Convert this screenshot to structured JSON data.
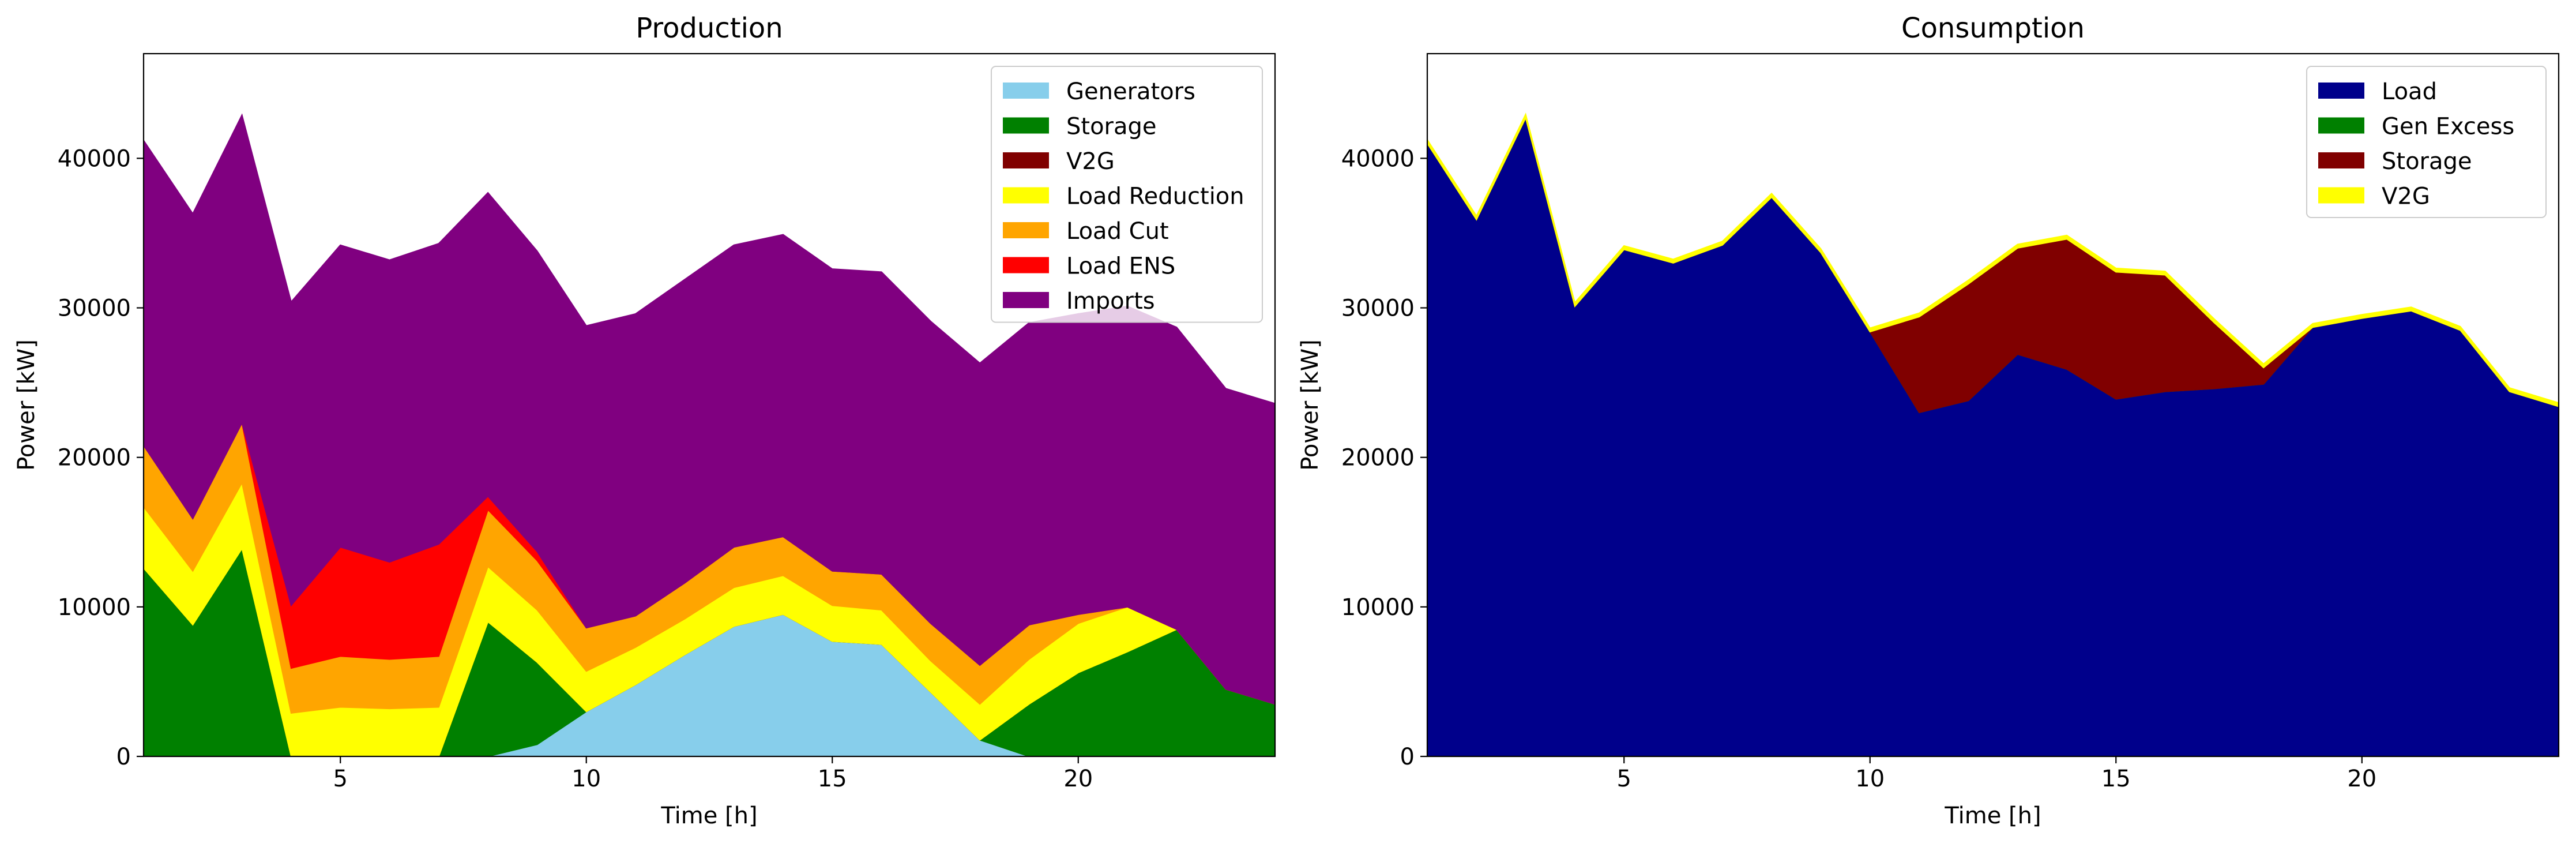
{
  "chart_data": [
    {
      "type": "area",
      "stacked": true,
      "title": "Production",
      "xlabel": "Time [h]",
      "ylabel": "Power [kW]",
      "xlim": [
        1,
        24
      ],
      "ylim": [
        0,
        47000
      ],
      "xticks": [
        5,
        10,
        15,
        20
      ],
      "yticks": [
        0,
        10000,
        20000,
        30000,
        40000
      ],
      "legend": "top-right",
      "x": [
        1,
        2,
        3,
        4,
        5,
        6,
        7,
        8,
        9,
        10,
        11,
        12,
        13,
        14,
        15,
        16,
        17,
        18,
        19,
        20,
        21,
        22,
        23,
        24
      ],
      "series": [
        {
          "name": "Generators",
          "color": "#87ceeb",
          "values": [
            0,
            0,
            0,
            0,
            0,
            0,
            0,
            0,
            800,
            3000,
            4800,
            6800,
            8700,
            9500,
            7700,
            7500,
            4300,
            1100,
            0,
            0,
            0,
            0,
            0,
            0
          ]
        },
        {
          "name": "Storage",
          "color": "#008000",
          "values": [
            12600,
            8800,
            13900,
            0,
            0,
            0,
            0,
            9000,
            5500,
            0,
            0,
            0,
            0,
            0,
            0,
            0,
            0,
            0,
            3500,
            5600,
            7000,
            8500,
            4500,
            3500
          ]
        },
        {
          "name": "V2G",
          "color": "#800000",
          "values": [
            0,
            0,
            0,
            0,
            0,
            0,
            0,
            0,
            0,
            0,
            0,
            0,
            0,
            0,
            0,
            0,
            0,
            0,
            0,
            0,
            0,
            0,
            0,
            0
          ]
        },
        {
          "name": "Load Reduction",
          "color": "#ffff00",
          "values": [
            4100,
            3600,
            4400,
            2900,
            3300,
            3200,
            3300,
            3700,
            3500,
            2700,
            2500,
            2400,
            2600,
            2600,
            2400,
            2300,
            2100,
            2400,
            3000,
            3300,
            3000,
            0,
            0,
            0
          ]
        },
        {
          "name": "Load Cut",
          "color": "#ffa500",
          "values": [
            4100,
            3500,
            4000,
            3000,
            3400,
            3300,
            3400,
            3800,
            3300,
            2900,
            2100,
            2400,
            2700,
            2600,
            2300,
            2400,
            2500,
            2600,
            2300,
            600,
            0,
            0,
            0,
            0
          ]
        },
        {
          "name": "Load ENS",
          "color": "#ff0000",
          "values": [
            0,
            0,
            0,
            4200,
            7300,
            6500,
            7500,
            900,
            600,
            0,
            0,
            0,
            0,
            0,
            0,
            0,
            0,
            0,
            0,
            0,
            0,
            0,
            0,
            0
          ]
        },
        {
          "name": "Imports",
          "color": "#800080",
          "values": [
            20400,
            20400,
            20600,
            20300,
            20200,
            20200,
            20100,
            20300,
            20100,
            20200,
            20200,
            20300,
            20200,
            20200,
            20200,
            20200,
            20200,
            20200,
            20200,
            20100,
            20100,
            20200,
            20100,
            20100
          ]
        }
      ]
    },
    {
      "type": "area",
      "stacked": true,
      "title": "Consumption",
      "xlabel": "Time [h]",
      "ylabel": "Power [kW]",
      "xlim": [
        1,
        24
      ],
      "ylim": [
        0,
        47000
      ],
      "xticks": [
        5,
        10,
        15,
        20
      ],
      "yticks": [
        0,
        10000,
        20000,
        30000,
        40000
      ],
      "legend": "top-right",
      "x": [
        1,
        2,
        3,
        4,
        5,
        6,
        7,
        8,
        9,
        10,
        11,
        12,
        13,
        14,
        15,
        16,
        17,
        18,
        19,
        20,
        21,
        22,
        23,
        24
      ],
      "series": [
        {
          "name": "Load",
          "color": "#00008b",
          "values": [
            41000,
            35900,
            42700,
            30100,
            33900,
            33000,
            34200,
            37400,
            33700,
            28400,
            23000,
            23800,
            26900,
            25900,
            23900,
            24400,
            24600,
            24900,
            28700,
            29300,
            29800,
            28500,
            24400,
            23400
          ]
        },
        {
          "name": "Gen Excess",
          "color": "#008000",
          "values": [
            0,
            0,
            0,
            0,
            0,
            0,
            0,
            0,
            0,
            0,
            0,
            0,
            0,
            0,
            0,
            0,
            0,
            0,
            0,
            0,
            0,
            0,
            0,
            0
          ]
        },
        {
          "name": "Storage",
          "color": "#800000",
          "values": [
            0,
            0,
            0,
            0,
            0,
            0,
            0,
            0,
            0,
            0,
            6400,
            7800,
            7100,
            8700,
            8500,
            7800,
            4400,
            1100,
            0,
            0,
            0,
            0,
            0,
            0
          ]
        },
        {
          "name": "V2G",
          "color": "#ffff00",
          "values": [
            250,
            250,
            250,
            250,
            250,
            250,
            250,
            250,
            250,
            250,
            250,
            250,
            250,
            250,
            250,
            250,
            250,
            250,
            250,
            250,
            250,
            250,
            250,
            250
          ]
        }
      ]
    }
  ]
}
